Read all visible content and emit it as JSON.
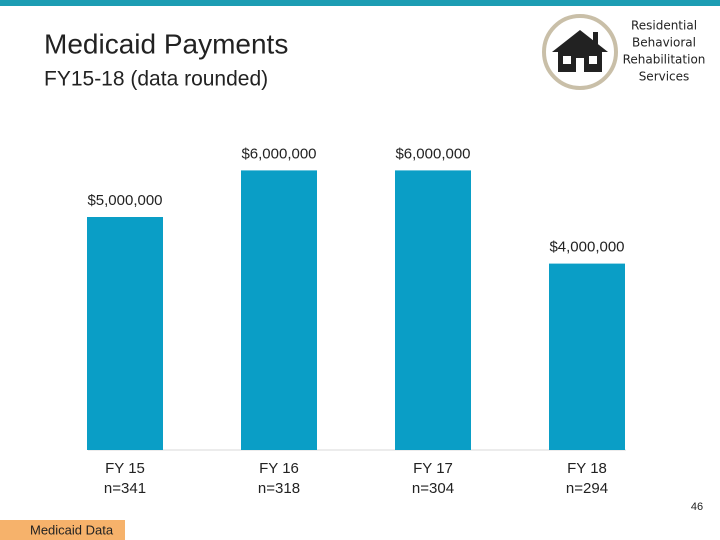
{
  "title": "Medicaid Payments",
  "subtitle": "FY15-18 (data rounded)",
  "logo_text": [
    "Residential",
    "Behavioral",
    "Rehabilitation",
    "Services"
  ],
  "footer": "Medicaid Data",
  "page_number": "46",
  "chart_data": {
    "type": "bar",
    "categories": [
      "FY 15",
      "FY 16",
      "FY 17",
      "FY 18"
    ],
    "category_sublabels": [
      "n=341",
      "n=318",
      "n=304",
      "n=294"
    ],
    "values": [
      5000000,
      6000000,
      6000000,
      4000000
    ],
    "value_labels": [
      "$5,000,000",
      "$6,000,000",
      "$6,000,000",
      "$4,000,000"
    ],
    "color": "#0a9ec6"
  }
}
